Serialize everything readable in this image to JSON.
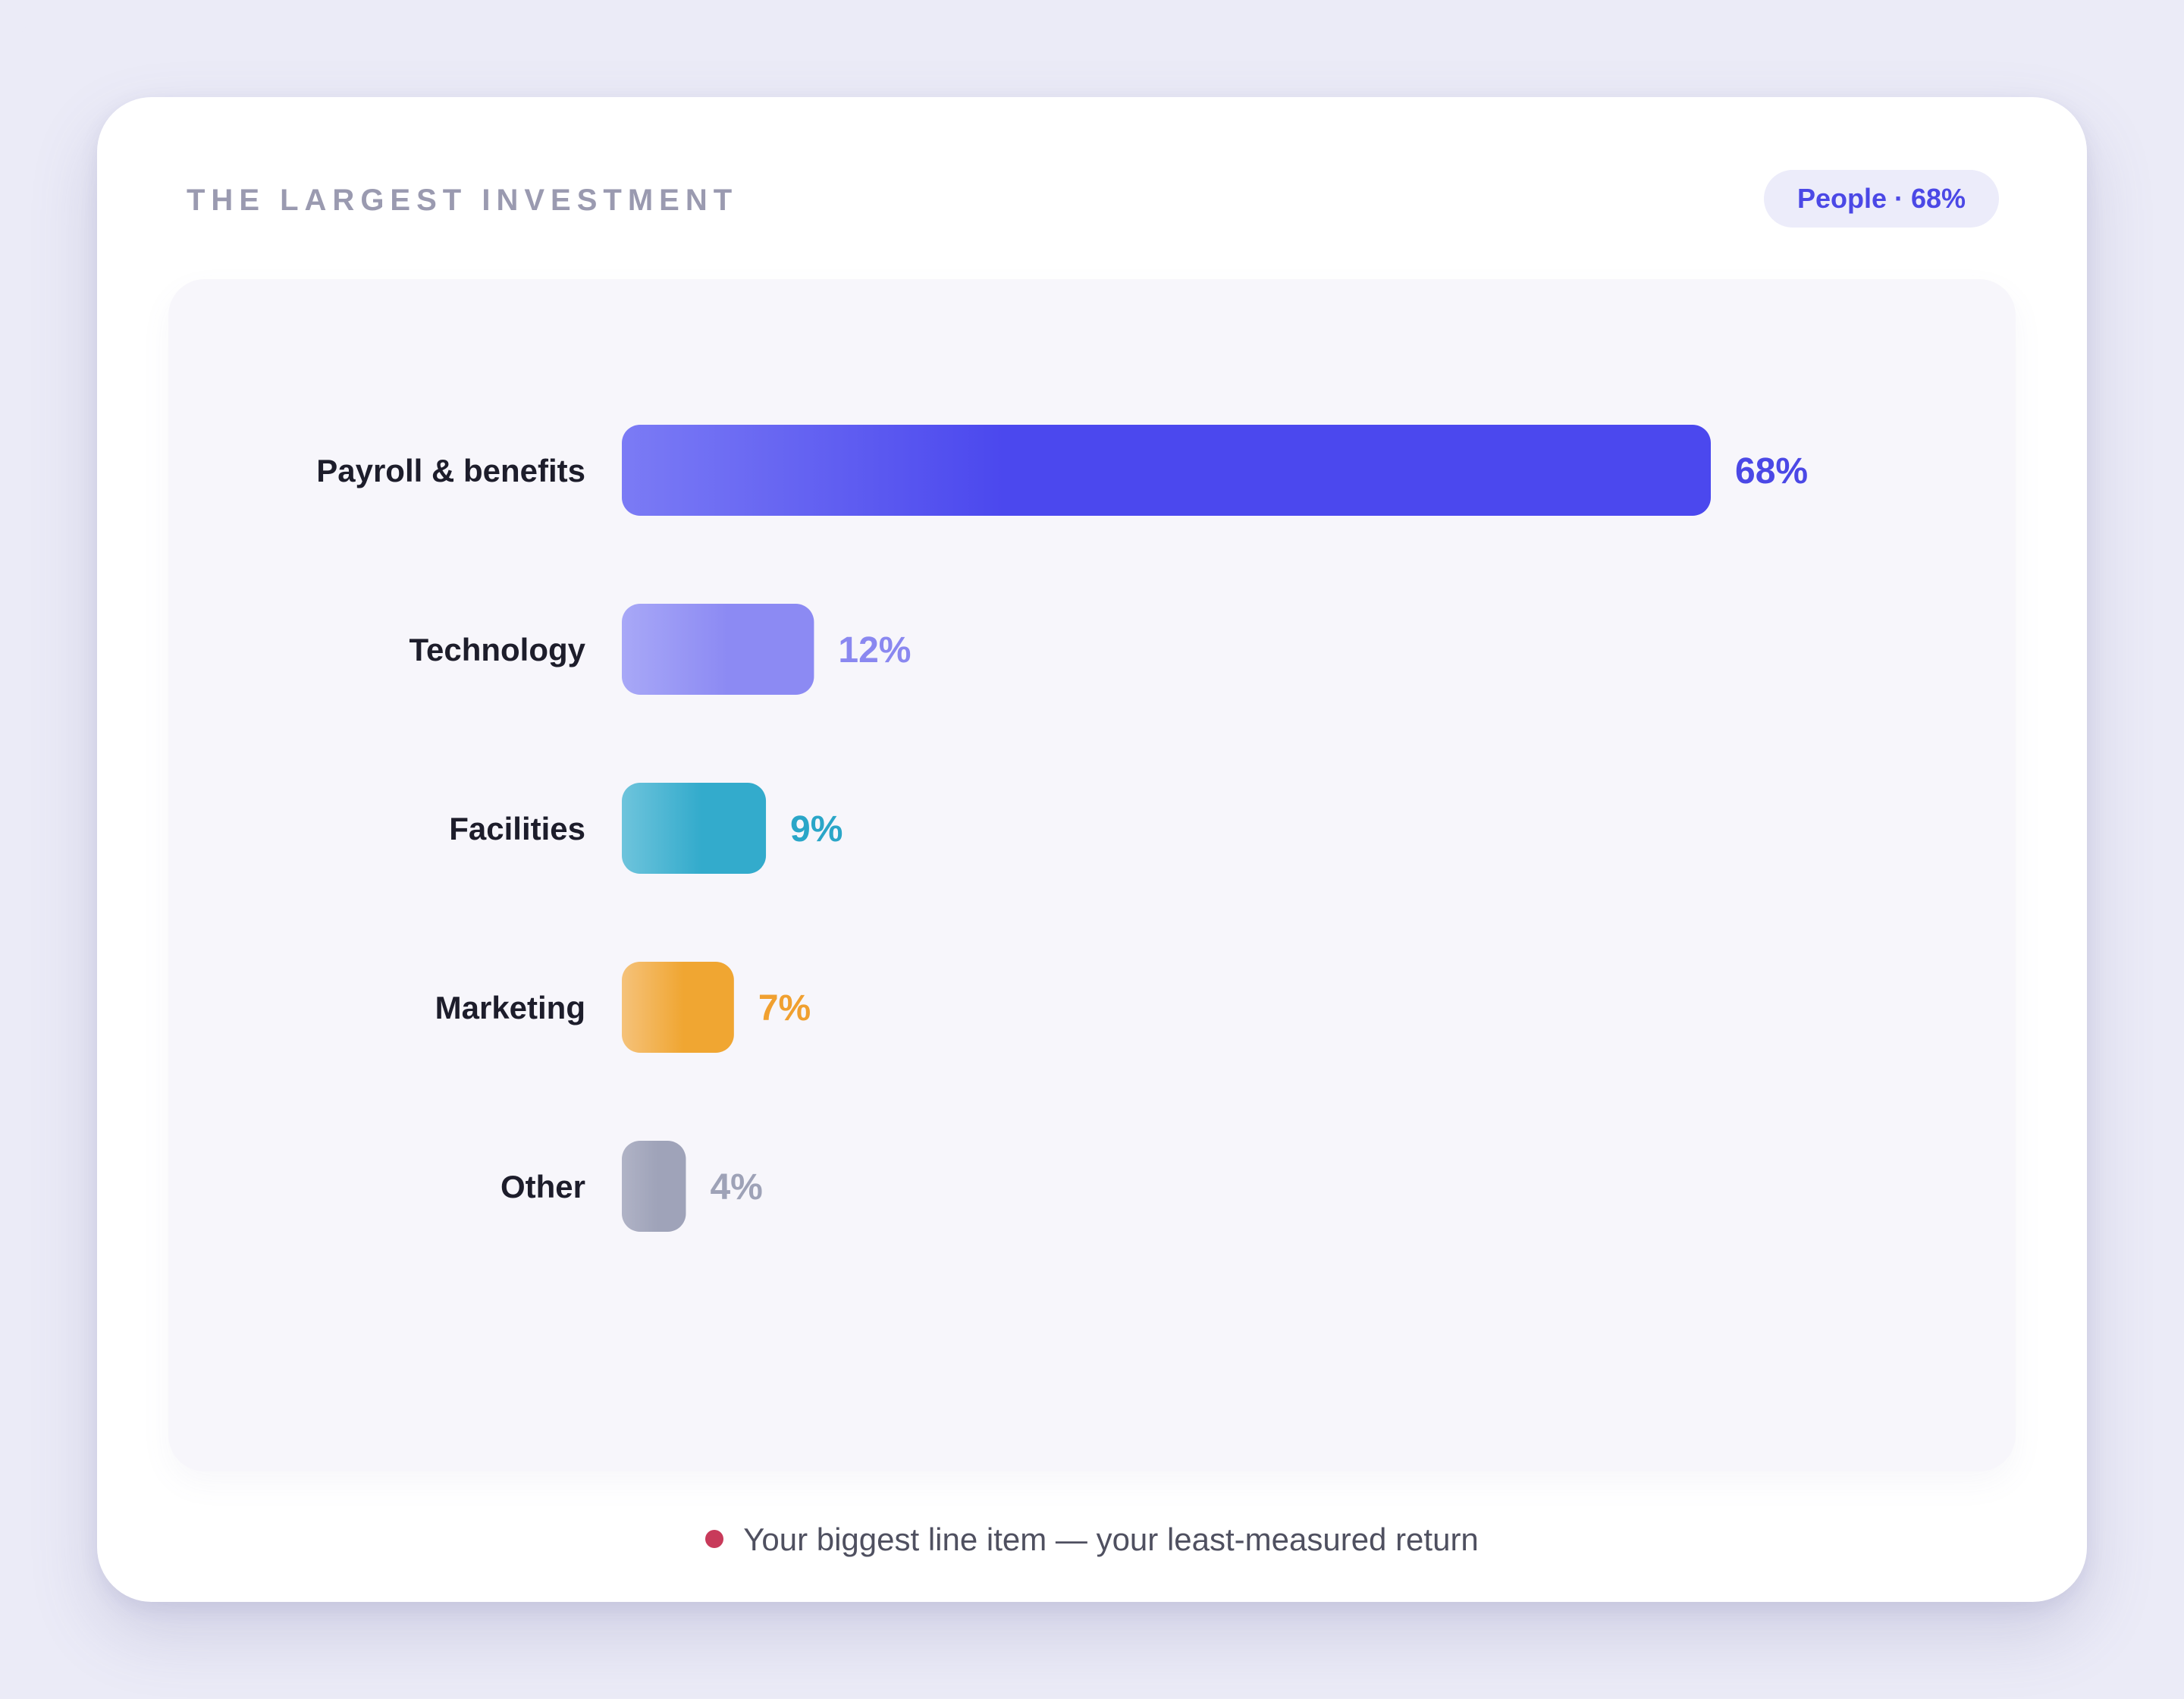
{
  "card": {
    "title": "THE LARGEST INVESTMENT",
    "badge": "People · 68%"
  },
  "footnote": {
    "text": "Your biggest line item — your least-measured return",
    "dot_color": "#c83a5a"
  },
  "chart_data": {
    "type": "bar",
    "orientation": "horizontal",
    "title": "",
    "xlabel": "",
    "ylabel": "",
    "xlim": [
      0,
      68
    ],
    "grid": false,
    "categories": [
      "Payroll & benefits",
      "Technology",
      "Facilities",
      "Marketing",
      "Other"
    ],
    "values": [
      68,
      12,
      9,
      7,
      4
    ],
    "value_labels": [
      "68%",
      "12%",
      "9%",
      "7%",
      "4%"
    ],
    "colors": [
      {
        "from": "#7b7bf5",
        "to": "#4b48ee",
        "label": "#4b48e6"
      },
      {
        "from": "#a8a8f7",
        "to": "#8c8af3",
        "label": "#8a88f0"
      },
      {
        "from": "#6ec4dc",
        "to": "#33abcc",
        "label": "#2aa6c8"
      },
      {
        "from": "#f5c27a",
        "to": "#f0a632",
        "label": "#f0a030"
      },
      {
        "from": "#b0b3c6",
        "to": "#9fa3b9",
        "label": "#9ea2b7"
      }
    ]
  }
}
